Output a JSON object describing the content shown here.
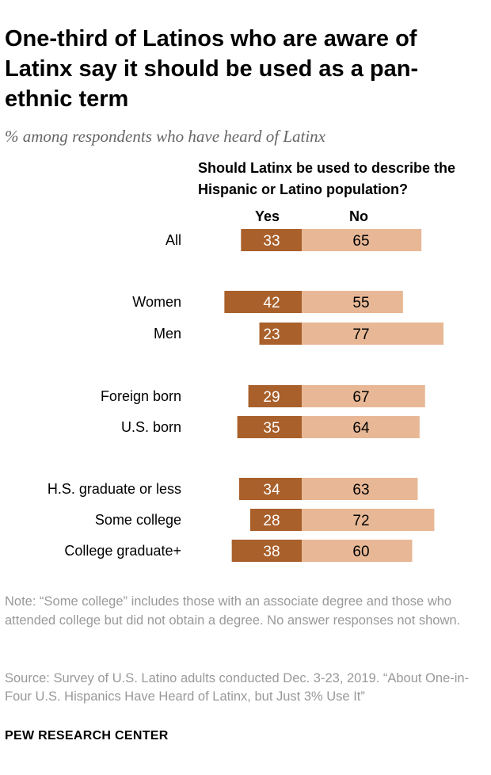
{
  "title": "One-third of Latinos who are aware of Latinx say it should be used as a pan-ethnic term",
  "subtitle": "% among respondents who have heard of Latinx",
  "chart_data": {
    "type": "bar",
    "orientation": "horizontal",
    "stacked": "diverging",
    "question": "Should Latinx be used to describe the Hispanic or Latino population?",
    "categories": [
      "All",
      "Women",
      "Men",
      "Foreign born",
      "U.S. born",
      "H.S. graduate or less",
      "Some college",
      "College graduate+"
    ],
    "groups": [
      [
        "All"
      ],
      [
        "Women",
        "Men"
      ],
      [
        "Foreign born",
        "U.S. born"
      ],
      [
        "H.S. graduate or less",
        "Some college",
        "College graduate+"
      ]
    ],
    "series": [
      {
        "name": "Yes",
        "color": "#a9602b",
        "values": [
          33,
          42,
          23,
          29,
          35,
          34,
          28,
          38
        ]
      },
      {
        "name": "No",
        "color": "#e8b896",
        "values": [
          65,
          55,
          77,
          67,
          64,
          63,
          72,
          60
        ]
      }
    ],
    "xlim": [
      0,
      100
    ]
  },
  "note": "Note: “Some college” includes those with an associate degree and those who attended college but did not obtain a degree. No answer responses not shown.",
  "source": "Source: Survey of U.S. Latino adults conducted Dec. 3-23, 2019. “About One-in-Four U.S. Hispanics Have Heard of Latinx, but Just 3% Use It”",
  "brand": "PEW RESEARCH CENTER"
}
